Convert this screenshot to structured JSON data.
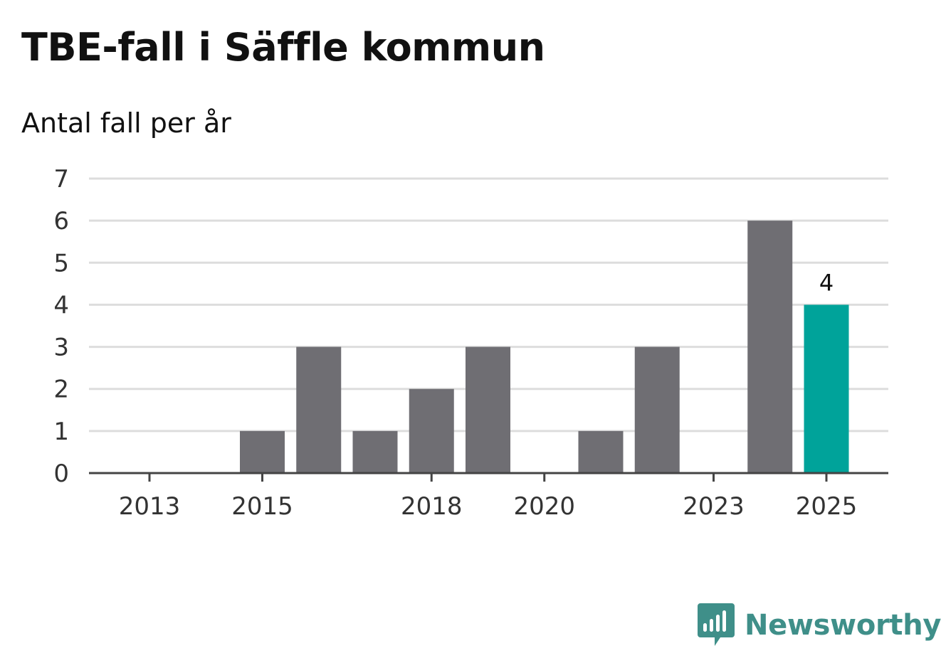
{
  "title": "TBE-fall i Säffle kommun",
  "subtitle": "Antal fall per år",
  "brand": {
    "name": "Newsworthy",
    "icon": "newsworthy-logo-icon",
    "color": "#3f8f89"
  },
  "colors": {
    "bar": "#6f6e73",
    "highlight": "#00a39a",
    "grid": "#dddddd",
    "axis": "#444444"
  },
  "chart_data": {
    "type": "bar",
    "title": "TBE-fall i Säffle kommun",
    "subtitle": "Antal fall per år",
    "xlabel": "",
    "ylabel": "Antal fall per år",
    "categories": [
      "2013",
      "2014",
      "2015",
      "2016",
      "2017",
      "2018",
      "2019",
      "2020",
      "2021",
      "2022",
      "2023",
      "2024",
      "2025"
    ],
    "values": [
      0,
      0,
      1,
      3,
      1,
      2,
      3,
      0,
      1,
      3,
      0,
      6,
      4
    ],
    "x_tick_labels": [
      "2013",
      "2015",
      "2018",
      "2020",
      "2023",
      "2025"
    ],
    "y_ticks": [
      0,
      1,
      2,
      3,
      4,
      5,
      6,
      7
    ],
    "ylim": [
      0,
      7
    ],
    "grid": true,
    "highlight_category": "2025",
    "data_labels": [
      {
        "category": "2025",
        "text": "4"
      }
    ]
  }
}
